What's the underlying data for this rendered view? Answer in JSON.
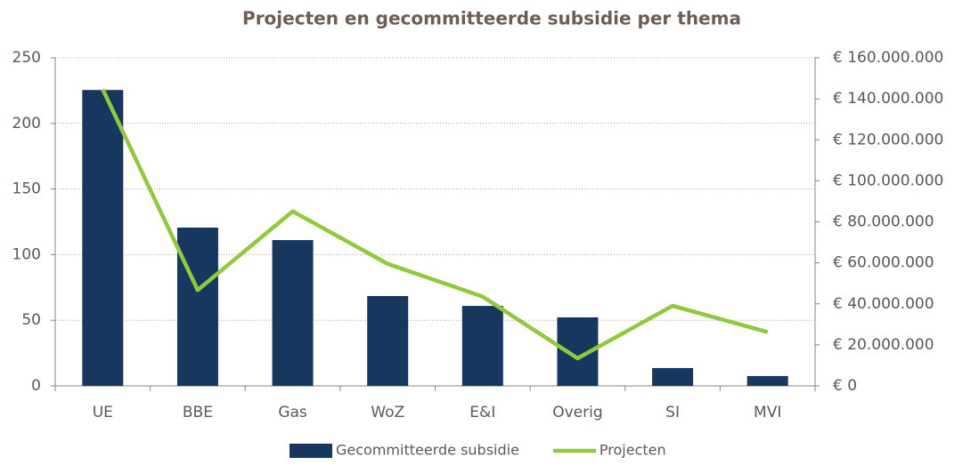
{
  "chart_data": {
    "type": "bar_line",
    "title": "Projecten en gecommitteerde subsidie per thema",
    "categories": [
      "UE",
      "BBE",
      "Gas",
      "WoZ",
      "E&I",
      "Overig",
      "SI",
      "MVI"
    ],
    "series": [
      {
        "name": "Gecommitteerde subsidie",
        "color": "#17375e",
        "type": "bar",
        "axis": "y2",
        "values": [
          144300000,
          77200000,
          71100000,
          43800000,
          39000000,
          33400000,
          8700000,
          4800000
        ]
      },
      {
        "name": "Projecten",
        "color": "#92c83e",
        "type": "line",
        "axis": "y",
        "values": [
          226,
          73,
          133,
          93,
          68,
          21,
          61,
          41
        ]
      }
    ],
    "ylim": [
      0,
      250
    ],
    "yticks": [
      0,
      50,
      100,
      150,
      200,
      250
    ],
    "y2lim": [
      0,
      160000000
    ],
    "y2ticks": [
      {
        "value": 0,
        "label": "€ 0"
      },
      {
        "value": 20000000,
        "label": "€ 20.000.000"
      },
      {
        "value": 40000000,
        "label": "€ 40.000.000"
      },
      {
        "value": 60000000,
        "label": "€ 60.000.000"
      },
      {
        "value": 80000000,
        "label": "€ 80.000.000"
      },
      {
        "value": 100000000,
        "label": "€ 100.000.000"
      },
      {
        "value": 120000000,
        "label": "€ 120.000.000"
      },
      {
        "value": 140000000,
        "label": "€ 140.000.000"
      },
      {
        "value": 160000000,
        "label": "€ 160.000.000"
      }
    ],
    "grid": true,
    "legend": "bottom"
  }
}
